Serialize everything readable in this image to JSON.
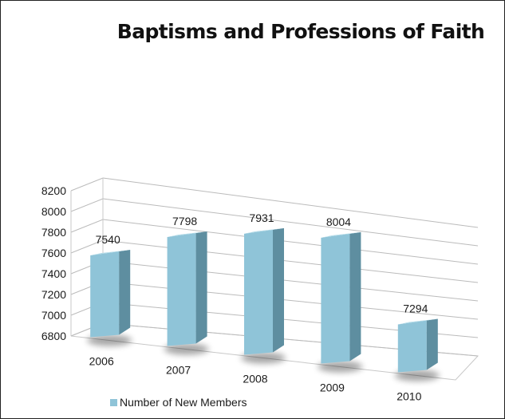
{
  "chart_data": {
    "type": "bar",
    "title": "Baptisms and Professions of Faith",
    "categories": [
      "2006",
      "2007",
      "2008",
      "2009",
      "2010"
    ],
    "series": [
      {
        "name": "Number of New Members",
        "values": [
          7540,
          7798,
          7931,
          8004,
          7294
        ]
      }
    ],
    "data_labels": [
      "7540",
      "7798",
      "7931",
      "8004",
      "7294"
    ],
    "y_ticks": [
      "6800",
      "7000",
      "7200",
      "7400",
      "7600",
      "7800",
      "8000",
      "8200"
    ],
    "ylim": [
      6800,
      8200
    ],
    "grid": true,
    "legend_position": "bottom-left",
    "colors": {
      "bar_front": "#8fc4d8",
      "bar_top": "#b3dbe8",
      "bar_side": "#5e8ea0",
      "grid": "#bbbbbb"
    }
  }
}
